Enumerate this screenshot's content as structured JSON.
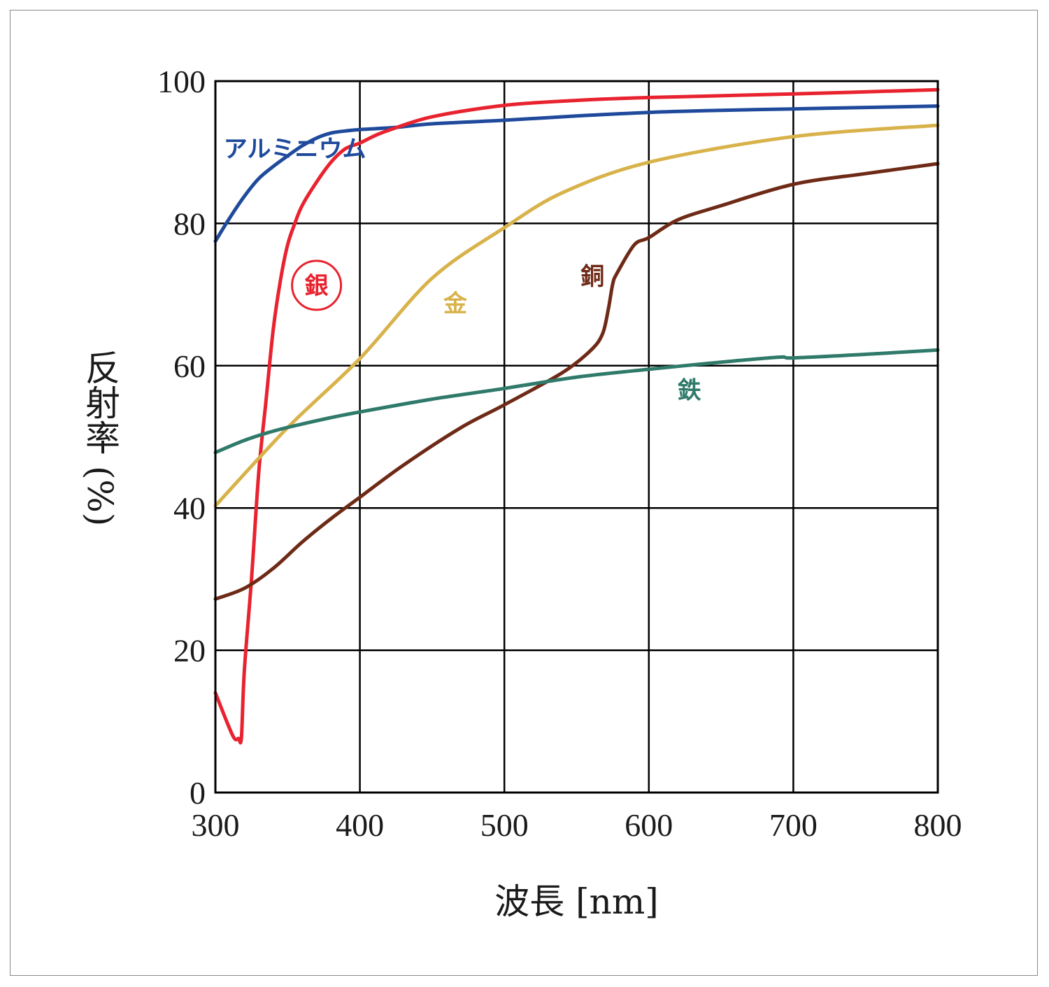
{
  "chart_data": {
    "type": "line",
    "xlabel": "波長 [nm]",
    "ylabel": "反射率 (%)",
    "xlim": [
      300,
      800
    ],
    "ylim": [
      0,
      100
    ],
    "xticks": [
      "300",
      "400",
      "500",
      "600",
      "700",
      "800"
    ],
    "yticks": [
      "0",
      "20",
      "40",
      "60",
      "80",
      "100"
    ],
    "grid": true,
    "legend": "inline labels",
    "series": [
      {
        "name": "アルミニウム",
        "color": "#1f4a9c",
        "label_at": [
          355,
          90.5
        ],
        "x": [
          300,
          310,
          320,
          330,
          340,
          350,
          360,
          370,
          380,
          390,
          400,
          425,
          450,
          500,
          550,
          600,
          650,
          700,
          750,
          800
        ],
        "y": [
          77.5,
          80.8,
          83.8,
          86.3,
          88,
          89.5,
          90.9,
          92,
          92.7,
          93,
          93.2,
          93.5,
          94,
          94.5,
          95.1,
          95.6,
          95.9,
          96.1,
          96.3,
          96.5
        ]
      },
      {
        "name": "銀",
        "color": "#e8232f",
        "label_at": [
          370,
          71.3
        ],
        "circled": true,
        "x": [
          300,
          312,
          316,
          318,
          320,
          325,
          330,
          335,
          340,
          345,
          350,
          355,
          360,
          370,
          380,
          390,
          400,
          410,
          420,
          450,
          500,
          550,
          600,
          700,
          800
        ],
        "y": [
          14,
          8,
          7.6,
          7.7,
          17,
          30,
          45,
          55,
          65,
          72,
          77,
          80,
          82.5,
          85.8,
          88.6,
          90.5,
          91.3,
          92.3,
          93.1,
          95,
          96.6,
          97.3,
          97.7,
          98.2,
          98.8
        ]
      },
      {
        "name": "金",
        "color": "#d8b24a",
        "label_at": [
          466,
          68.8
        ],
        "x": [
          300,
          350,
          400,
          450,
          500,
          540,
          600,
          700,
          800
        ],
        "y": [
          40.3,
          51.3,
          61,
          72.3,
          79.4,
          84.3,
          88.6,
          92.2,
          93.8
        ]
      },
      {
        "name": "銅",
        "color": "#6e2a16",
        "label_at": [
          561,
          72.6
        ],
        "x": [
          300,
          320,
          340,
          360,
          380,
          400,
          430,
          470,
          500,
          540,
          560,
          568,
          572,
          575,
          578,
          590,
          600,
          620,
          650,
          700,
          750,
          800
        ],
        "y": [
          27.2,
          28.7,
          31.5,
          35.2,
          38.5,
          41.5,
          46,
          51.3,
          54.5,
          59,
          62.2,
          64.5,
          68,
          71.5,
          73,
          77,
          78,
          80.5,
          82.5,
          85.5,
          87,
          88.4
        ]
      },
      {
        "name": "鉄",
        "color": "#2f7a6a",
        "label_at": [
          628,
          56.6
        ],
        "x": [
          300,
          320,
          340,
          360,
          380,
          400,
          450,
          500,
          550,
          600,
          650,
          690,
          700,
          750,
          800
        ],
        "y": [
          47.8,
          49.5,
          50.8,
          51.8,
          52.7,
          53.5,
          55.3,
          56.8,
          58.4,
          59.5,
          60.5,
          61.2,
          61.1,
          61.6,
          62.2
        ]
      }
    ]
  }
}
